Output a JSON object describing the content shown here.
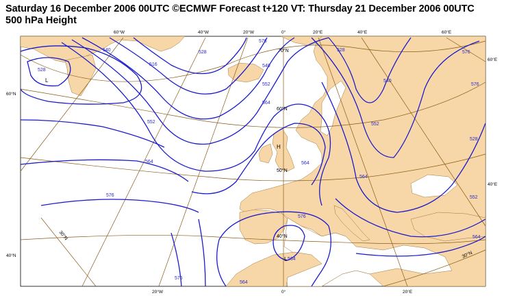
{
  "header": {
    "line1": "Saturday 16 December 2006 00UTC ©ECMWF Forecast t+120 VT: Thursday 21 December 2006 00UTC",
    "line2": "500 hPa Height"
  },
  "colors": {
    "land": "#f7d7a8",
    "sea": "#ffffff",
    "contour": "#1a1acc",
    "graticule": "#8a5a14",
    "coast": "#8a5a14"
  },
  "lon_labels_top": [
    "60°W",
    "40°W",
    "20°W",
    "0°",
    "20°E",
    "40°E",
    "60°E"
  ],
  "lon_labels_bottom": [
    "20°W",
    "0°",
    "20°E"
  ],
  "lat_labels_left": [
    "60°N",
    "40°N"
  ],
  "lat_labels_right": [
    "60°E",
    "40°E"
  ],
  "lat_labels_inside": [
    "70°N",
    "60°N",
    "50°N",
    "40°N",
    "30°N",
    "30°N"
  ],
  "contour_labels": [
    "528",
    "540",
    "552",
    "564",
    "576",
    "516",
    "528",
    "540",
    "552",
    "564",
    "576",
    "528",
    "540",
    "552",
    "564",
    "576",
    "564",
    "576",
    "576",
    "528",
    "552",
    "564",
    "564",
    "576",
    "564"
  ],
  "centers": [
    "L",
    "H",
    "L"
  ]
}
